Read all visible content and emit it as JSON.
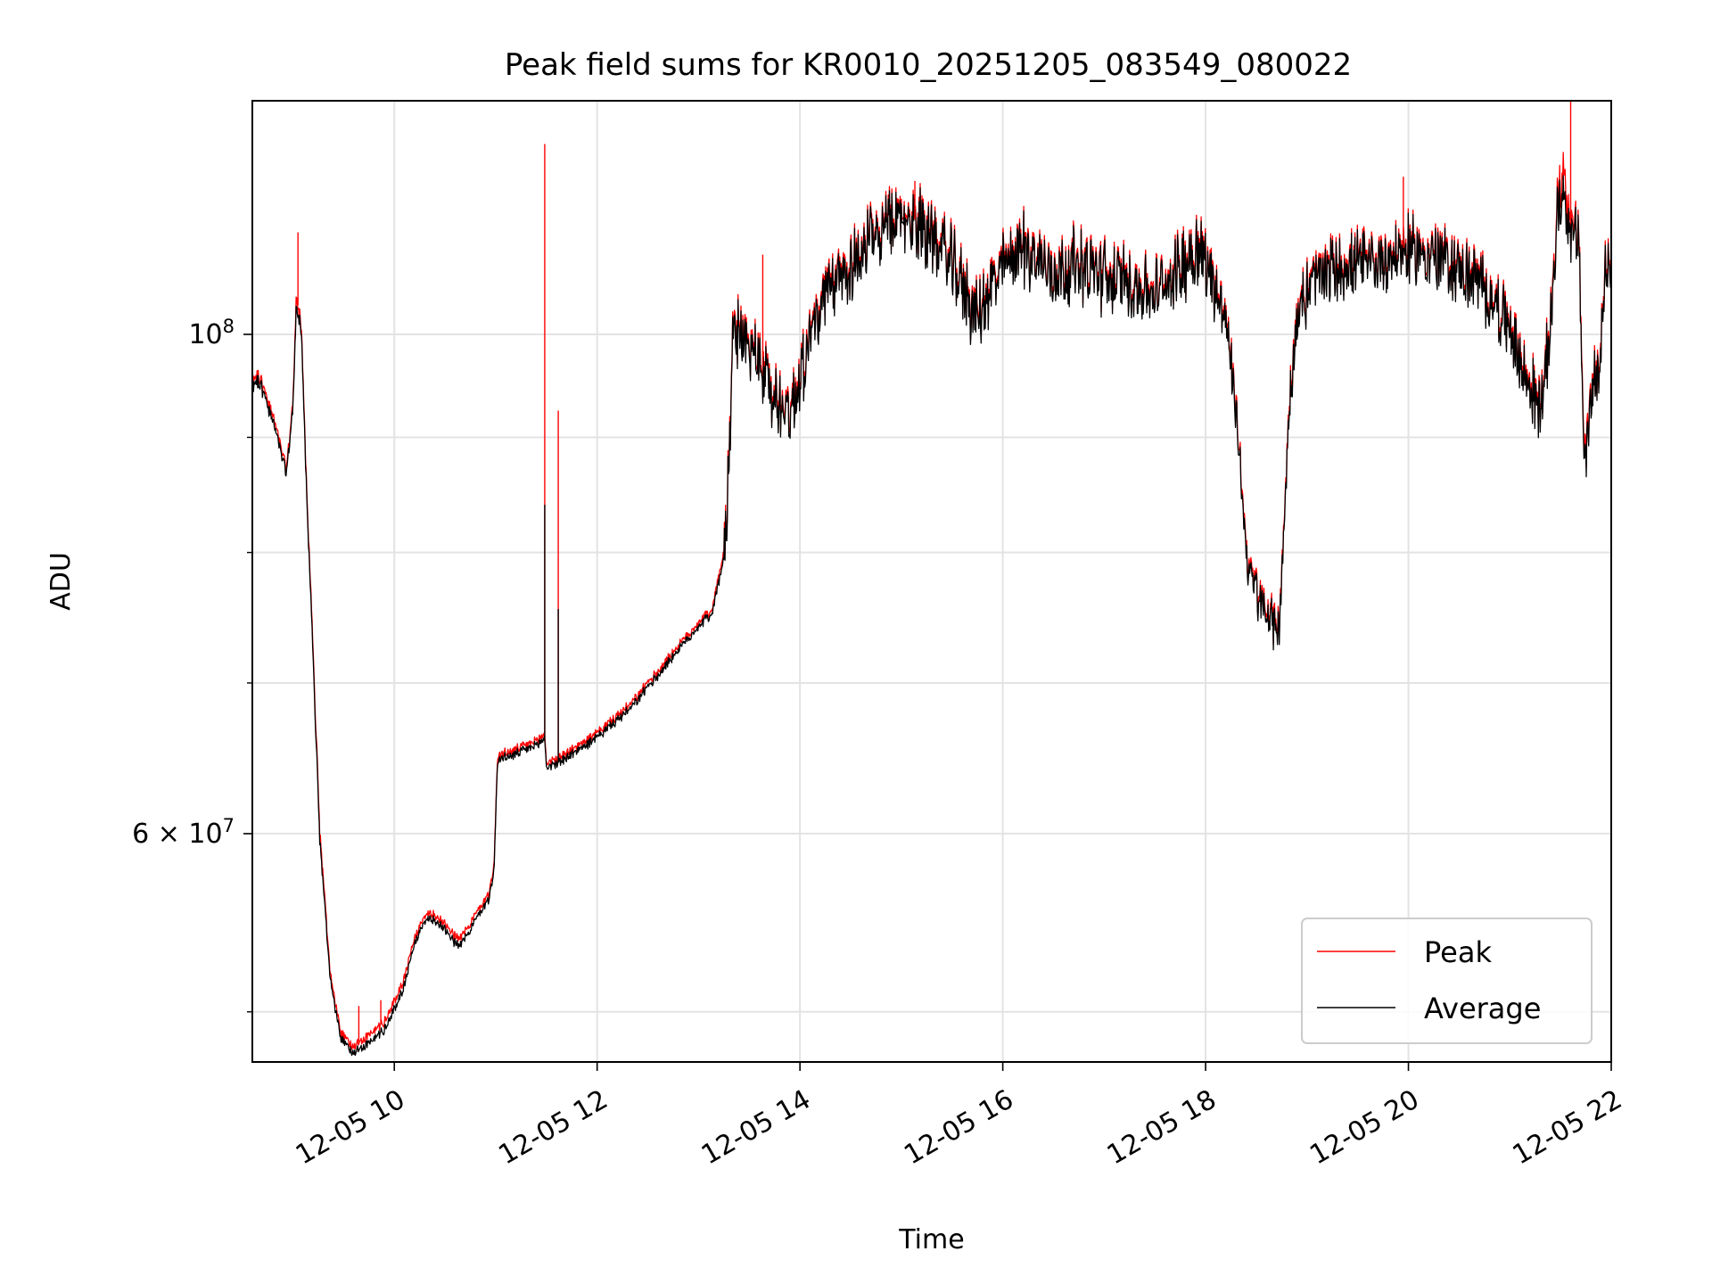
{
  "chart_data": {
    "type": "line",
    "title": "Peak field sums for KR0010_20251205_083549_080022",
    "xlabel": "Time",
    "ylabel": "ADU",
    "x_ticks": [
      "12-05 10",
      "12-05 12",
      "12-05 14",
      "12-05 16",
      "12-05 18",
      "12-05 20",
      "12-05 22"
    ],
    "y_major_ticks": [
      {
        "value": 100000000,
        "base": "10",
        "exp": "8"
      },
      {
        "value": 60000000,
        "mant": "6",
        "base": "10",
        "exp": "7"
      }
    ],
    "y_minor_ticks": [
      50000000,
      70000000,
      80000000,
      90000000
    ],
    "xlim": [
      "2025-12-05 08:36",
      "2025-12-05 22:00"
    ],
    "ylim": [
      47500000,
      127000000
    ],
    "yscale": "log",
    "grid": true,
    "legend_position": "lower right",
    "series": [
      {
        "name": "Peak",
        "color": "#ff0000",
        "points": [
          [
            "2025-12-05 08:36",
            95500000
          ],
          [
            "2025-12-05 08:40",
            96000000
          ],
          [
            "2025-12-05 08:50",
            91000000
          ],
          [
            "2025-12-05 08:56",
            87200000
          ],
          [
            "2025-12-05 09:00",
            93000000
          ],
          [
            "2025-12-05 09:02",
            104000000
          ],
          [
            "2025-12-05 09:05",
            101000000
          ],
          [
            "2025-12-05 09:08",
            86000000
          ],
          [
            "2025-12-05 09:12",
            72000000
          ],
          [
            "2025-12-05 09:16",
            60000000
          ],
          [
            "2025-12-05 09:22",
            52000000
          ],
          [
            "2025-12-05 09:28",
            49000000
          ],
          [
            "2025-12-05 09:35",
            48300000
          ],
          [
            "2025-12-05 09:45",
            48800000
          ],
          [
            "2025-12-05 09:55",
            49600000
          ],
          [
            "2025-12-05 10:05",
            51500000
          ],
          [
            "2025-12-05 10:12",
            54000000
          ],
          [
            "2025-12-05 10:20",
            55400000
          ],
          [
            "2025-12-05 10:30",
            54800000
          ],
          [
            "2025-12-05 10:38",
            53800000
          ],
          [
            "2025-12-05 10:50",
            55500000
          ],
          [
            "2025-12-05 10:56",
            56500000
          ],
          [
            "2025-12-05 10:59",
            58000000
          ],
          [
            "2025-12-05 11:01",
            65000000
          ],
          [
            "2025-12-05 11:10",
            65300000
          ],
          [
            "2025-12-05 11:25",
            66000000
          ],
          [
            "2025-12-05 11:29",
            66500000
          ],
          [
            "2025-12-05 11:30",
            64500000
          ],
          [
            "2025-12-05 11:40",
            65000000
          ],
          [
            "2025-12-05 12:00",
            66500000
          ],
          [
            "2025-12-05 12:20",
            68500000
          ],
          [
            "2025-12-05 12:40",
            71500000
          ],
          [
            "2025-12-05 13:00",
            74500000
          ],
          [
            "2025-12-05 13:08",
            75500000
          ],
          [
            "2025-12-05 13:15",
            80000000
          ],
          [
            "2025-12-05 13:18",
            88000000
          ],
          [
            "2025-12-05 13:20",
            99500000
          ],
          [
            "2025-12-05 13:25",
            100500000
          ],
          [
            "2025-12-05 13:35",
            98000000
          ],
          [
            "2025-12-05 13:45",
            94000000
          ],
          [
            "2025-12-05 13:55",
            93000000
          ],
          [
            "2025-12-05 14:05",
            100000000
          ],
          [
            "2025-12-05 14:15",
            104000000
          ],
          [
            "2025-12-05 14:30",
            108000000
          ],
          [
            "2025-12-05 14:45",
            111000000
          ],
          [
            "2025-12-05 15:00",
            113000000
          ],
          [
            "2025-12-05 15:15",
            112000000
          ],
          [
            "2025-12-05 15:30",
            108000000
          ],
          [
            "2025-12-05 15:45",
            102000000
          ],
          [
            "2025-12-05 15:55",
            106000000
          ],
          [
            "2025-12-05 16:10",
            110000000
          ],
          [
            "2025-12-05 16:20",
            108500000
          ],
          [
            "2025-12-05 16:30",
            107000000
          ],
          [
            "2025-12-05 16:45",
            108000000
          ],
          [
            "2025-12-05 17:00",
            106500000
          ],
          [
            "2025-12-05 17:15",
            106000000
          ],
          [
            "2025-12-05 17:30",
            104500000
          ],
          [
            "2025-12-05 17:45",
            107500000
          ],
          [
            "2025-12-05 17:55",
            110000000
          ],
          [
            "2025-12-05 18:05",
            106000000
          ],
          [
            "2025-12-05 18:12",
            102000000
          ],
          [
            "2025-12-05 18:18",
            93000000
          ],
          [
            "2025-12-05 18:25",
            79000000
          ],
          [
            "2025-12-05 18:32",
            76500000
          ],
          [
            "2025-12-05 18:40",
            74500000
          ],
          [
            "2025-12-05 18:44",
            75000000
          ],
          [
            "2025-12-05 18:50",
            95000000
          ],
          [
            "2025-12-05 18:55",
            103000000
          ],
          [
            "2025-12-05 19:05",
            106500000
          ],
          [
            "2025-12-05 19:20",
            107500000
          ],
          [
            "2025-12-05 19:40",
            108000000
          ],
          [
            "2025-12-05 20:00",
            109500000
          ],
          [
            "2025-12-05 20:20",
            108500000
          ],
          [
            "2025-12-05 20:40",
            106000000
          ],
          [
            "2025-12-05 20:50",
            104000000
          ],
          [
            "2025-12-05 21:00",
            101000000
          ],
          [
            "2025-12-05 21:07",
            97000000
          ],
          [
            "2025-12-05 21:12",
            95000000
          ],
          [
            "2025-12-05 21:18",
            93500000
          ],
          [
            "2025-12-05 21:23",
            99000000
          ],
          [
            "2025-12-05 21:28",
            114000000
          ],
          [
            "2025-12-05 21:32",
            119000000
          ],
          [
            "2025-12-05 21:36",
            112000000
          ],
          [
            "2025-12-05 21:41",
            110000000
          ],
          [
            "2025-12-05 21:44",
            88000000
          ],
          [
            "2025-12-05 21:48",
            94000000
          ],
          [
            "2025-12-05 21:53",
            98000000
          ],
          [
            "2025-12-05 21:56",
            107000000
          ],
          [
            "2025-12-05 22:00",
            106500000
          ]
        ]
      },
      {
        "name": "Average",
        "color": "#000000",
        "points": [
          [
            "2025-12-05 08:36",
            95000000
          ],
          [
            "2025-12-05 08:40",
            95500000
          ],
          [
            "2025-12-05 08:50",
            90500000
          ],
          [
            "2025-12-05 08:56",
            86800000
          ],
          [
            "2025-12-05 09:00",
            92500000
          ],
          [
            "2025-12-05 09:02",
            103000000
          ],
          [
            "2025-12-05 09:05",
            100500000
          ],
          [
            "2025-12-05 09:08",
            85500000
          ],
          [
            "2025-12-05 09:12",
            71500000
          ],
          [
            "2025-12-05 09:16",
            59500000
          ],
          [
            "2025-12-05 09:22",
            51700000
          ],
          [
            "2025-12-05 09:28",
            48700000
          ],
          [
            "2025-12-05 09:35",
            48000000
          ],
          [
            "2025-12-05 09:45",
            48400000
          ],
          [
            "2025-12-05 09:55",
            49200000
          ],
          [
            "2025-12-05 10:05",
            51100000
          ],
          [
            "2025-12-05 10:12",
            53700000
          ],
          [
            "2025-12-05 10:20",
            55100000
          ],
          [
            "2025-12-05 10:30",
            54500000
          ],
          [
            "2025-12-05 10:38",
            53400000
          ],
          [
            "2025-12-05 10:50",
            55200000
          ],
          [
            "2025-12-05 10:56",
            56200000
          ],
          [
            "2025-12-05 10:59",
            57700000
          ],
          [
            "2025-12-05 11:01",
            64700000
          ],
          [
            "2025-12-05 11:10",
            65000000
          ],
          [
            "2025-12-05 11:25",
            65700000
          ],
          [
            "2025-12-05 11:29",
            66200000
          ],
          [
            "2025-12-05 11:30",
            64200000
          ],
          [
            "2025-12-05 11:40",
            64700000
          ],
          [
            "2025-12-05 12:00",
            66200000
          ],
          [
            "2025-12-05 12:20",
            68200000
          ],
          [
            "2025-12-05 12:40",
            71200000
          ],
          [
            "2025-12-05 13:00",
            74200000
          ],
          [
            "2025-12-05 13:08",
            75200000
          ],
          [
            "2025-12-05 13:15",
            79500000
          ],
          [
            "2025-12-05 13:18",
            87500000
          ],
          [
            "2025-12-05 13:20",
            99000000
          ],
          [
            "2025-12-05 13:25",
            100000000
          ],
          [
            "2025-12-05 13:35",
            97500000
          ],
          [
            "2025-12-05 13:45",
            93500000
          ],
          [
            "2025-12-05 13:55",
            92500000
          ],
          [
            "2025-12-05 14:05",
            99500000
          ],
          [
            "2025-12-05 14:15",
            103500000
          ],
          [
            "2025-12-05 14:30",
            107500000
          ],
          [
            "2025-12-05 14:45",
            110500000
          ],
          [
            "2025-12-05 15:00",
            112500000
          ],
          [
            "2025-12-05 15:15",
            111500000
          ],
          [
            "2025-12-05 15:30",
            107500000
          ],
          [
            "2025-12-05 15:45",
            101500000
          ],
          [
            "2025-12-05 15:55",
            105500000
          ],
          [
            "2025-12-05 16:10",
            109500000
          ],
          [
            "2025-12-05 16:20",
            108000000
          ],
          [
            "2025-12-05 16:30",
            106500000
          ],
          [
            "2025-12-05 16:45",
            107500000
          ],
          [
            "2025-12-05 17:00",
            106000000
          ],
          [
            "2025-12-05 17:15",
            105500000
          ],
          [
            "2025-12-05 17:30",
            104000000
          ],
          [
            "2025-12-05 17:45",
            107000000
          ],
          [
            "2025-12-05 17:55",
            109500000
          ],
          [
            "2025-12-05 18:05",
            105500000
          ],
          [
            "2025-12-05 18:12",
            101500000
          ],
          [
            "2025-12-05 18:18",
            92500000
          ],
          [
            "2025-12-05 18:25",
            78600000
          ],
          [
            "2025-12-05 18:32",
            76100000
          ],
          [
            "2025-12-05 18:40",
            74100000
          ],
          [
            "2025-12-05 18:44",
            74600000
          ],
          [
            "2025-12-05 18:50",
            94500000
          ],
          [
            "2025-12-05 18:55",
            102500000
          ],
          [
            "2025-12-05 19:05",
            106000000
          ],
          [
            "2025-12-05 19:20",
            107000000
          ],
          [
            "2025-12-05 19:40",
            107500000
          ],
          [
            "2025-12-05 20:00",
            109000000
          ],
          [
            "2025-12-05 20:20",
            108000000
          ],
          [
            "2025-12-05 20:40",
            105500000
          ],
          [
            "2025-12-05 20:50",
            103500000
          ],
          [
            "2025-12-05 21:00",
            100500000
          ],
          [
            "2025-12-05 21:07",
            96500000
          ],
          [
            "2025-12-05 21:12",
            94500000
          ],
          [
            "2025-12-05 21:18",
            93000000
          ],
          [
            "2025-12-05 21:23",
            98500000
          ],
          [
            "2025-12-05 21:28",
            113000000
          ],
          [
            "2025-12-05 21:32",
            116000000
          ],
          [
            "2025-12-05 21:36",
            111000000
          ],
          [
            "2025-12-05 21:41",
            109500000
          ],
          [
            "2025-12-05 21:44",
            87000000
          ],
          [
            "2025-12-05 21:48",
            93500000
          ],
          [
            "2025-12-05 21:53",
            97500000
          ],
          [
            "2025-12-05 21:56",
            106500000
          ],
          [
            "2025-12-05 22:00",
            106000000
          ]
        ]
      }
    ],
    "spikes": [
      {
        "series": "Peak",
        "time": "2025-12-05 09:03",
        "value": 111000000
      },
      {
        "series": "Peak",
        "time": "2025-12-05 09:39",
        "value": 50300000
      },
      {
        "series": "Peak",
        "time": "2025-12-05 09:52",
        "value": 50600000
      },
      {
        "series": "Peak",
        "time": "2025-12-05 11:29",
        "value": 121500000
      },
      {
        "series": "Average",
        "time": "2025-12-05 11:29",
        "value": 84000000
      },
      {
        "series": "Peak",
        "time": "2025-12-05 11:37",
        "value": 92500000
      },
      {
        "series": "Average",
        "time": "2025-12-05 11:37",
        "value": 75500000
      },
      {
        "series": "Peak",
        "time": "2025-12-05 13:38",
        "value": 108500000
      },
      {
        "series": "Peak",
        "time": "2025-12-05 15:08",
        "value": 117000000
      },
      {
        "series": "Peak",
        "time": "2025-12-05 19:57",
        "value": 117500000
      },
      {
        "series": "Peak",
        "time": "2025-12-05 21:36",
        "value": 129000000
      }
    ]
  }
}
